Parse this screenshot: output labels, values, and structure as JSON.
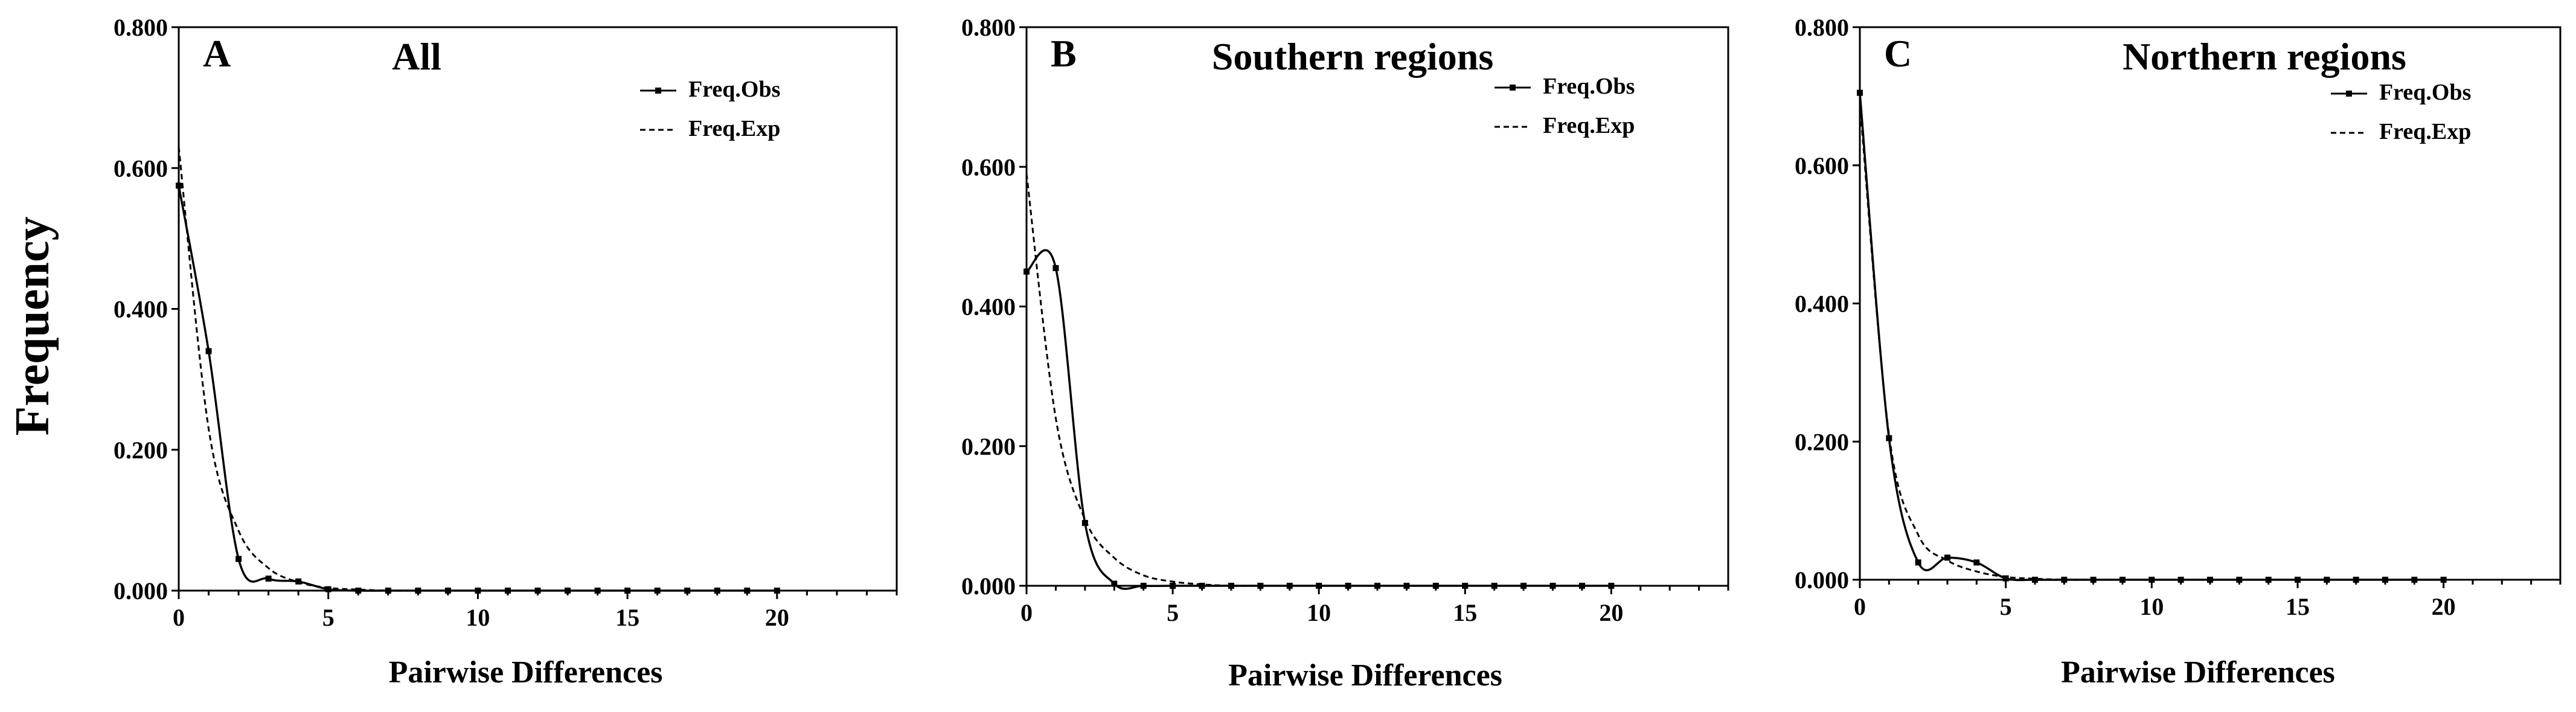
{
  "figure": {
    "ylabel": "Frequency"
  },
  "chart_data": [
    {
      "type": "line",
      "panel_letter": "A",
      "title": "All",
      "xlabel": "Pairwise Differences",
      "ylabel": "Frequency",
      "xlim": [
        0,
        24
      ],
      "ylim": [
        0,
        0.8
      ],
      "xticks": [
        0,
        5,
        10,
        15,
        20
      ],
      "yticks": [
        "0.000",
        "0.200",
        "0.400",
        "0.600",
        "0.800"
      ],
      "grid": false,
      "legend_position": "top-right",
      "series": [
        {
          "name": "Freq.Obs",
          "style": "solid-markers",
          "x": [
            0,
            1,
            2,
            3,
            4,
            5,
            6,
            7,
            8,
            9,
            10,
            11,
            12,
            13,
            14,
            15,
            16,
            17,
            18,
            19,
            20
          ],
          "y": [
            0.575,
            0.34,
            0.045,
            0.017,
            0.013,
            0.002,
            0,
            0,
            0,
            0,
            0,
            0,
            0,
            0,
            0,
            0,
            0,
            0,
            0,
            0,
            0
          ]
        },
        {
          "name": "Freq.Exp",
          "style": "dashed",
          "x": [
            0,
            1,
            2,
            3,
            4,
            5,
            6,
            7,
            8,
            9,
            10,
            11,
            12,
            13,
            14,
            15,
            16,
            17,
            18,
            19,
            20
          ],
          "y": [
            0.63,
            0.23,
            0.085,
            0.032,
            0.012,
            0.004,
            0.0015,
            0,
            0,
            0,
            0,
            0,
            0,
            0,
            0,
            0,
            0,
            0,
            0,
            0,
            0
          ]
        }
      ]
    },
    {
      "type": "line",
      "panel_letter": "B",
      "title": "Southern regions",
      "xlabel": "Pairwise Differences",
      "ylabel": "Frequency",
      "xlim": [
        0,
        24
      ],
      "ylim": [
        0,
        0.8
      ],
      "xticks": [
        0,
        5,
        10,
        15,
        20
      ],
      "yticks": [
        "0.000",
        "0.200",
        "0.400",
        "0.600",
        "0.800"
      ],
      "grid": false,
      "legend_position": "top-right",
      "series": [
        {
          "name": "Freq.Obs",
          "style": "solid-markers",
          "x": [
            0,
            1,
            2,
            3,
            4,
            5,
            6,
            7,
            8,
            9,
            10,
            11,
            12,
            13,
            14,
            15,
            16,
            17,
            18,
            19,
            20
          ],
          "y": [
            0.45,
            0.455,
            0.09,
            0.003,
            0,
            0,
            0,
            0,
            0,
            0,
            0,
            0,
            0,
            0,
            0,
            0,
            0,
            0,
            0,
            0,
            0
          ]
        },
        {
          "name": "Freq.Exp",
          "style": "dashed",
          "x": [
            0,
            1,
            2,
            3,
            4,
            5,
            6,
            7,
            8,
            9,
            10,
            11,
            12,
            13,
            14,
            15,
            16,
            17,
            18,
            19,
            20
          ],
          "y": [
            0.59,
            0.24,
            0.095,
            0.04,
            0.015,
            0.006,
            0.002,
            0,
            0,
            0,
            0,
            0,
            0,
            0,
            0,
            0,
            0,
            0,
            0,
            0,
            0
          ]
        }
      ]
    },
    {
      "type": "line",
      "panel_letter": "C",
      "title": "Northern regions",
      "xlabel": "Pairwise Differences",
      "ylabel": "Frequency",
      "xlim": [
        0,
        24
      ],
      "ylim": [
        0,
        0.8
      ],
      "xticks": [
        0,
        5,
        10,
        15,
        20
      ],
      "yticks": [
        "0.000",
        "0.200",
        "0.400",
        "0.600",
        "0.800"
      ],
      "grid": false,
      "legend_position": "top-right",
      "series": [
        {
          "name": "Freq.Obs",
          "style": "solid-markers",
          "x": [
            0,
            1,
            2,
            3,
            4,
            5,
            6,
            7,
            8,
            9,
            10,
            11,
            12,
            13,
            14,
            15,
            16,
            17,
            18,
            19,
            20
          ],
          "y": [
            0.705,
            0.205,
            0.025,
            0.032,
            0.025,
            0.002,
            0,
            0,
            0,
            0,
            0,
            0,
            0,
            0,
            0,
            0,
            0,
            0,
            0,
            0,
            0
          ]
        },
        {
          "name": "Freq.Exp",
          "style": "dashed",
          "x": [
            0,
            1,
            2,
            3,
            4,
            5,
            6,
            7,
            8,
            9,
            10,
            11,
            12,
            13,
            14,
            15,
            16,
            17,
            18,
            19,
            20
          ],
          "y": [
            0.69,
            0.21,
            0.065,
            0.028,
            0.012,
            0.004,
            0.0015,
            0,
            0,
            0,
            0,
            0,
            0,
            0,
            0,
            0,
            0,
            0,
            0,
            0,
            0
          ]
        }
      ]
    }
  ]
}
